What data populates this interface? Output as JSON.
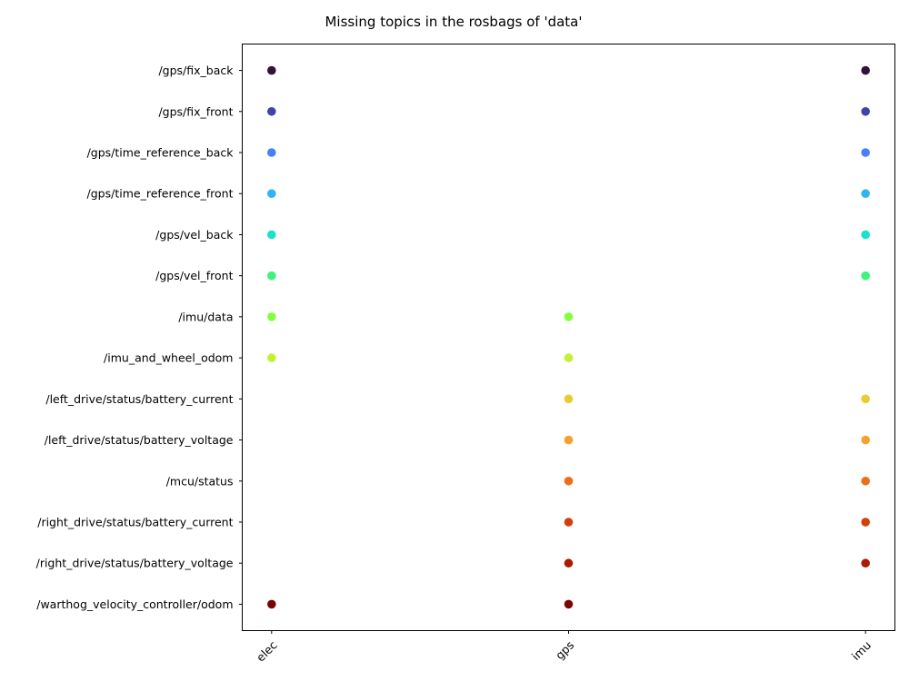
{
  "chart_data": {
    "type": "scatter",
    "title": "Missing topics in the rosbags of 'data'",
    "xlabel": "",
    "ylabel": "",
    "grid": false,
    "x_categories": [
      "elec",
      "gps",
      "imu"
    ],
    "y_categories": [
      "/gps/fix_back",
      "/gps/fix_front",
      "/gps/time_reference_back",
      "/gps/time_reference_front",
      "/gps/vel_back",
      "/gps/vel_front",
      "/imu/data",
      "/imu_and_wheel_odom",
      "/left_drive/status/battery_current",
      "/left_drive/status/battery_voltage",
      "/mcu/status",
      "/right_drive/status/battery_current",
      "/right_drive/status/battery_voltage",
      "/warthog_velocity_controller/odom"
    ],
    "topic_colors": [
      "#30123b",
      "#4143a7",
      "#4681f7",
      "#2eb5f3",
      "#1be1c9",
      "#3ef27e",
      "#83ff3e",
      "#c3f133",
      "#e9cb33",
      "#f6a02e",
      "#ee6d18",
      "#d43e07",
      "#ad1a01",
      "#7a0403"
    ],
    "points": [
      {
        "x": "elec",
        "y": "/gps/fix_back"
      },
      {
        "x": "elec",
        "y": "/gps/fix_front"
      },
      {
        "x": "elec",
        "y": "/gps/time_reference_back"
      },
      {
        "x": "elec",
        "y": "/gps/time_reference_front"
      },
      {
        "x": "elec",
        "y": "/gps/vel_back"
      },
      {
        "x": "elec",
        "y": "/gps/vel_front"
      },
      {
        "x": "elec",
        "y": "/imu/data"
      },
      {
        "x": "elec",
        "y": "/imu_and_wheel_odom"
      },
      {
        "x": "elec",
        "y": "/warthog_velocity_controller/odom"
      },
      {
        "x": "gps",
        "y": "/imu/data"
      },
      {
        "x": "gps",
        "y": "/imu_and_wheel_odom"
      },
      {
        "x": "gps",
        "y": "/left_drive/status/battery_current"
      },
      {
        "x": "gps",
        "y": "/left_drive/status/battery_voltage"
      },
      {
        "x": "gps",
        "y": "/mcu/status"
      },
      {
        "x": "gps",
        "y": "/right_drive/status/battery_current"
      },
      {
        "x": "gps",
        "y": "/right_drive/status/battery_voltage"
      },
      {
        "x": "gps",
        "y": "/warthog_velocity_controller/odom"
      },
      {
        "x": "imu",
        "y": "/gps/fix_back"
      },
      {
        "x": "imu",
        "y": "/gps/fix_front"
      },
      {
        "x": "imu",
        "y": "/gps/time_reference_back"
      },
      {
        "x": "imu",
        "y": "/gps/time_reference_front"
      },
      {
        "x": "imu",
        "y": "/gps/vel_back"
      },
      {
        "x": "imu",
        "y": "/gps/vel_front"
      },
      {
        "x": "imu",
        "y": "/left_drive/status/battery_current"
      },
      {
        "x": "imu",
        "y": "/left_drive/status/battery_voltage"
      },
      {
        "x": "imu",
        "y": "/mcu/status"
      },
      {
        "x": "imu",
        "y": "/right_drive/status/battery_current"
      },
      {
        "x": "imu",
        "y": "/right_drive/status/battery_voltage"
      }
    ]
  }
}
